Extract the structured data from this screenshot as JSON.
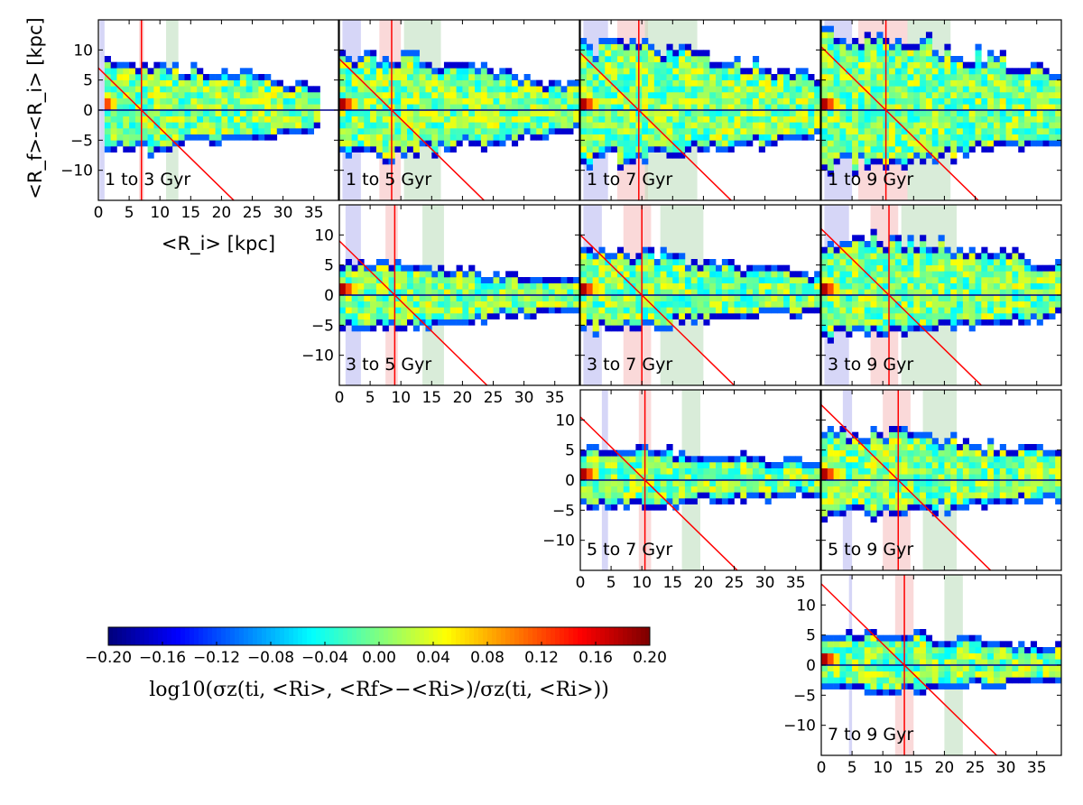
{
  "chart_data": {
    "type": "heatmap",
    "layout": "upper-triangular grid of panels (rows: start age 1,3,5,7 Gyr; columns: end age 3,5,7,9 Gyr)",
    "x_axis": {
      "label": "<R_i> [kpc]",
      "lim": [
        0,
        39
      ],
      "ticks": [
        0,
        5,
        10,
        15,
        20,
        25,
        30,
        35
      ]
    },
    "y_axis": {
      "label": "<R_f>-<R_i> [kpc]",
      "lim": [
        -15,
        15
      ],
      "ticks": [
        10,
        5,
        0,
        -5,
        -10
      ]
    },
    "colorbar": {
      "label": "log10(σz(ti,<Ri>,<Rf>−<Ri>)/σz(ti,<Ri>))",
      "label_plain": "log10(σz(ti, <Ri>, <Rf>−<Ri>)/σz(ti, <Ri>))",
      "range": [
        -0.2,
        0.2
      ],
      "ticks": [
        "−0.20",
        "−0.16",
        "−0.12",
        "−0.08",
        "−0.04",
        "0.00",
        "0.04",
        "0.08",
        "0.12",
        "0.16",
        "0.20"
      ],
      "colormap": "jet",
      "colors": [
        "#00007f",
        "#0000ff",
        "#007fff",
        "#00ffff",
        "#7fff7f",
        "#ffff00",
        "#ff7f00",
        "#ff0000",
        "#7f0000"
      ]
    },
    "overlay_colors": {
      "blue_band": "#b4b4f0",
      "red_band": "#f5b9b9",
      "green_band": "#b9dcb9",
      "red_line": "#ff0000",
      "zero_line": "#00008b"
    },
    "panels": [
      {
        "row": 0,
        "col": 0,
        "label": "1 to 3 Gyr",
        "ri_line": 7.0,
        "blue_band": [
          0.2,
          1.0
        ],
        "red_band": [
          6.6,
          7.4
        ],
        "green_band": [
          11.0,
          13.0
        ],
        "extent": [
          1,
          36
        ],
        "y_up": 9,
        "y_down": 7,
        "hot_rows": 2
      },
      {
        "row": 0,
        "col": 1,
        "label": "1 to 5 Gyr",
        "ri_line": 8.5,
        "blue_band": [
          0.5,
          3.5
        ],
        "red_band": [
          6.5,
          10.0
        ],
        "green_band": [
          10.5,
          16.5
        ],
        "extent": [
          0,
          39
        ],
        "y_up": 10,
        "y_down": 8,
        "hot_rows": 2
      },
      {
        "row": 0,
        "col": 2,
        "label": "1 to 7 Gyr",
        "ri_line": 9.5,
        "blue_band": [
          0.5,
          4.5
        ],
        "red_band": [
          6.0,
          11.0
        ],
        "green_band": [
          10.5,
          19.0
        ],
        "extent": [
          0,
          39
        ],
        "y_up": 12,
        "y_down": 9,
        "hot_rows": 2
      },
      {
        "row": 0,
        "col": 3,
        "label": "1 to 9 Gyr",
        "ri_line": 10.5,
        "blue_band": [
          0.5,
          5.0
        ],
        "red_band": [
          6.0,
          14.0
        ],
        "green_band": [
          14.0,
          21.0
        ],
        "extent": [
          0,
          39
        ],
        "y_up": 14,
        "y_down": 10,
        "hot_rows": 2
      },
      {
        "row": 1,
        "col": 1,
        "label": "3 to 5 Gyr",
        "ri_line": 9.0,
        "blue_band": [
          1.0,
          3.5
        ],
        "red_band": [
          7.5,
          9.5
        ],
        "green_band": [
          13.5,
          17.0
        ],
        "extent": [
          0,
          39
        ],
        "y_up": 6,
        "y_down": 6,
        "hot_rows": 2
      },
      {
        "row": 1,
        "col": 2,
        "label": "3 to 7 Gyr",
        "ri_line": 10.0,
        "blue_band": [
          0.5,
          3.5
        ],
        "red_band": [
          7.0,
          11.5
        ],
        "green_band": [
          13.0,
          20.0
        ],
        "extent": [
          0,
          39
        ],
        "y_up": 8,
        "y_down": 6,
        "hot_rows": 2
      },
      {
        "row": 1,
        "col": 3,
        "label": "3 to 9 Gyr",
        "ri_line": 11.0,
        "blue_band": [
          0.5,
          4.5
        ],
        "red_band": [
          8.0,
          12.5
        ],
        "green_band": [
          13.0,
          22.0
        ],
        "extent": [
          0,
          39
        ],
        "y_up": 11,
        "y_down": 7,
        "hot_rows": 2
      },
      {
        "row": 2,
        "col": 2,
        "label": "5 to 7 Gyr",
        "ri_line": 10.5,
        "blue_band": [
          3.5,
          4.5
        ],
        "red_band": [
          9.5,
          11.5
        ],
        "green_band": [
          16.5,
          19.5
        ],
        "extent": [
          0,
          39
        ],
        "y_up": 6,
        "y_down": 5,
        "hot_rows": 2
      },
      {
        "row": 2,
        "col": 3,
        "label": "5 to 9 Gyr",
        "ri_line": 12.5,
        "blue_band": [
          3.5,
          5.0
        ],
        "red_band": [
          10.0,
          14.5
        ],
        "green_band": [
          16.5,
          22.0
        ],
        "extent": [
          0,
          39
        ],
        "y_up": 9,
        "y_down": 6,
        "hot_rows": 2
      },
      {
        "row": 3,
        "col": 3,
        "label": "7 to 9 Gyr",
        "ri_line": 13.5,
        "blue_band": [
          4.5,
          5.0
        ],
        "red_band": [
          12.0,
          15.0
        ],
        "green_band": [
          20.0,
          23.0
        ],
        "extent": [
          0,
          39
        ],
        "y_up": 6,
        "y_down": 5,
        "hot_rows": 2
      }
    ]
  }
}
